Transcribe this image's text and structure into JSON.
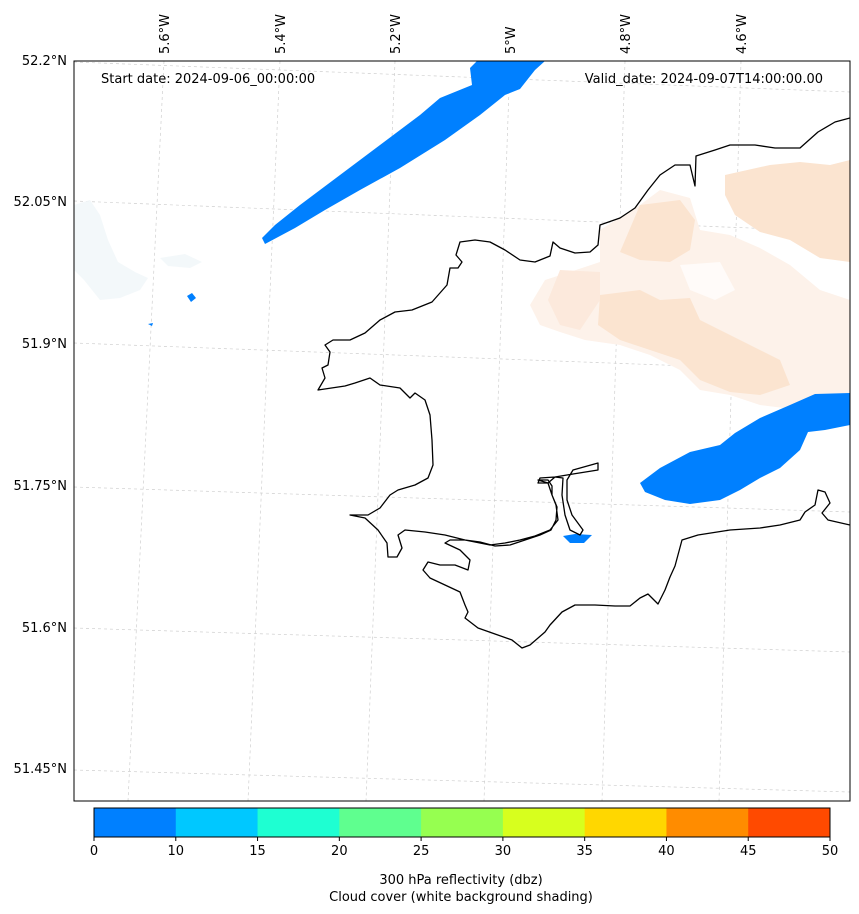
{
  "map": {
    "start_date": "Start date: 2024-09-06_00:00:00",
    "valid_date": "Valid_date: 2024-09-07T14:00:00.00",
    "lon_labels": [
      "5.6°W",
      "5.4°W",
      "5.2°W",
      "5°W",
      "4.8°W",
      "4.6°W"
    ],
    "lat_labels": [
      "52.2°N",
      "52.05°N",
      "51.9°N",
      "51.75°N",
      "51.6°N",
      "51.45°N"
    ],
    "gridlines": true,
    "coastline_color": "#000000",
    "reflectivity_color": "#0080ff",
    "cloud_color": "#fbe4d0"
  },
  "colorbar": {
    "ticks": [
      "0",
      "10",
      "15",
      "20",
      "25",
      "30",
      "35",
      "40",
      "45",
      "50"
    ],
    "colors": [
      "#0080ff",
      "#00c8ff",
      "#1effd2",
      "#5fff8f",
      "#96ff50",
      "#d7ff1e",
      "#ffd700",
      "#ff8c00",
      "#ff4a00"
    ],
    "label_line1": "300 hPa reflectivity (dbz)",
    "label_line2": "Cloud cover (white background shading)"
  }
}
